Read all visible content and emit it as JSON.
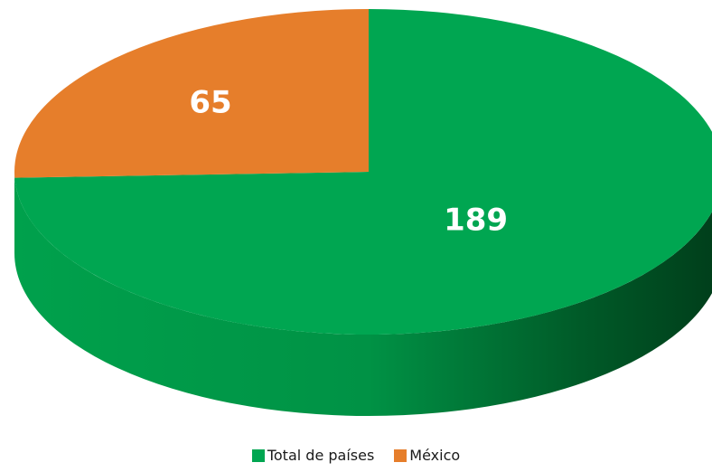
{
  "chart_data": {
    "type": "pie",
    "categories": [
      "Total de países",
      "México"
    ],
    "values": [
      189,
      65
    ],
    "colors": [
      "#00A651",
      "#E67E2B"
    ],
    "side_colors": [
      "#007a38",
      "#a85a1a"
    ],
    "data_labels": [
      "189",
      "65"
    ],
    "style": "3d",
    "legend_position": "bottom"
  },
  "legend": {
    "items": [
      {
        "label": "Total de países",
        "color": "#00A651"
      },
      {
        "label": "México",
        "color": "#E67E2B"
      }
    ]
  }
}
